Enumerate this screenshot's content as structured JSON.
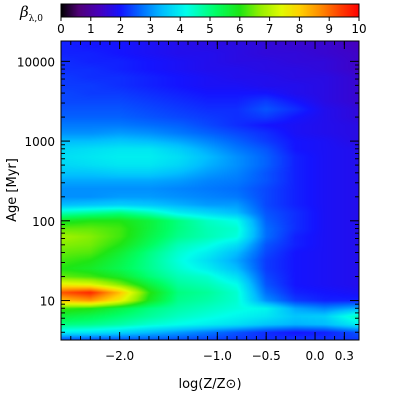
{
  "chart_data": {
    "type": "heatmap",
    "title": "",
    "xlabel": "log(Z/Z⊙)",
    "ylabel": "Age [Myr]",
    "xlim": [
      -2.6,
      0.45
    ],
    "ylim": [
      3.2,
      18000
    ],
    "y_scale": "log",
    "x_ticks": [
      -2.0,
      -1.0,
      -0.5,
      0.0,
      0.3
    ],
    "x_tick_labels": [
      "−2.0",
      "−1.0",
      "−0.5",
      "0.0",
      "0.3"
    ],
    "y_ticks": [
      10,
      100,
      1000,
      10000
    ],
    "y_tick_labels": [
      "10",
      "100",
      "1000",
      "10000"
    ],
    "colorbar": {
      "label": "β",
      "label_subscript": "λ,0",
      "range": [
        0,
        10
      ],
      "ticks": [
        0,
        1,
        2,
        3,
        4,
        5,
        6,
        7,
        8,
        9,
        10
      ],
      "tick_labels": [
        "0",
        "1",
        "2",
        "3",
        "4",
        "5",
        "6",
        "7",
        "8",
        "9",
        "10"
      ],
      "colormap": "rainbow (black-purple-blue-cyan-green-yellow-red)"
    },
    "log_age_rows": [
      0.52,
      0.6,
      0.7,
      0.8,
      0.9,
      1.0,
      1.1,
      1.2,
      1.3,
      1.4,
      1.5,
      1.6,
      1.7,
      1.8,
      1.9,
      2.0,
      2.1,
      2.2,
      2.3,
      2.4,
      2.5,
      2.6,
      2.7,
      2.8,
      2.9,
      3.0,
      3.1,
      3.2,
      3.3,
      3.4,
      3.5,
      3.6,
      3.7,
      3.8,
      3.9,
      4.0,
      4.1,
      4.2,
      4.25
    ],
    "log_z_cols": [
      -2.6,
      -2.3,
      -2.0,
      -1.7,
      -1.4,
      -1.1,
      -0.8,
      -0.5,
      -0.2,
      0.1,
      0.45
    ],
    "values": [
      [
        2.6,
        2.6,
        2.6,
        2.6,
        2.5,
        2.4,
        2.3,
        2.2,
        2.2,
        2.2,
        2.3
      ],
      [
        4.0,
        3.9,
        3.7,
        3.4,
        3.1,
        2.8,
        2.5,
        2.2,
        2.0,
        2.1,
        2.5
      ],
      [
        5.0,
        4.9,
        4.7,
        4.4,
        4.2,
        4.0,
        3.8,
        3.5,
        3.3,
        3.4,
        4.0
      ],
      [
        5.6,
        5.4,
        5.1,
        4.8,
        4.5,
        4.3,
        4.1,
        3.9,
        3.5,
        3.6,
        4.6
      ],
      [
        6.2,
        6.0,
        5.5,
        5.0,
        4.7,
        4.5,
        4.3,
        4.1,
        3.2,
        2.9,
        3.3
      ],
      [
        8.2,
        8.6,
        7.6,
        5.9,
        4.9,
        4.7,
        4.4,
        3.0,
        2.3,
        2.1,
        2.1
      ],
      [
        9.2,
        9.6,
        8.2,
        6.1,
        5.0,
        4.8,
        4.4,
        2.7,
        2.1,
        2.0,
        1.9
      ],
      [
        7.6,
        7.4,
        6.6,
        5.6,
        4.8,
        4.6,
        4.2,
        2.5,
        2.0,
        1.9,
        1.8
      ],
      [
        6.4,
        6.2,
        5.8,
        5.1,
        4.6,
        4.4,
        3.8,
        2.4,
        2.0,
        1.9,
        1.8
      ],
      [
        6.0,
        5.8,
        5.4,
        4.9,
        4.4,
        4.0,
        3.4,
        2.3,
        2.0,
        1.9,
        1.8
      ],
      [
        6.2,
        6.0,
        5.5,
        4.9,
        4.3,
        3.8,
        3.2,
        2.3,
        2.0,
        1.9,
        1.8
      ],
      [
        6.4,
        6.3,
        5.7,
        5.0,
        4.4,
        4.0,
        3.4,
        2.4,
        2.0,
        1.9,
        1.8
      ],
      [
        6.6,
        6.5,
        6.0,
        5.3,
        4.6,
        4.3,
        3.8,
        2.5,
        2.1,
        1.9,
        1.8
      ],
      [
        6.8,
        6.6,
        6.2,
        5.5,
        4.9,
        4.6,
        4.3,
        2.7,
        2.1,
        1.9,
        1.8
      ],
      [
        6.4,
        6.4,
        6.2,
        5.6,
        5.0,
        4.6,
        4.4,
        2.7,
        2.2,
        1.9,
        1.8
      ],
      [
        5.8,
        6.0,
        6.0,
        5.6,
        5.0,
        4.5,
        4.2,
        2.6,
        2.2,
        1.9,
        1.8
      ],
      [
        4.6,
        4.8,
        5.0,
        4.6,
        4.0,
        3.7,
        3.4,
        2.5,
        2.2,
        1.9,
        1.8
      ],
      [
        3.4,
        3.5,
        3.6,
        3.5,
        3.3,
        3.1,
        3.1,
        2.4,
        2.1,
        1.9,
        1.8
      ],
      [
        3.0,
        3.0,
        3.1,
        3.1,
        3.0,
        2.9,
        2.8,
        2.4,
        2.1,
        1.9,
        1.8
      ],
      [
        3.0,
        3.0,
        3.0,
        3.0,
        2.9,
        2.8,
        2.7,
        2.4,
        2.1,
        1.9,
        1.8
      ],
      [
        3.2,
        3.2,
        3.2,
        3.2,
        3.1,
        2.9,
        2.8,
        2.5,
        2.1,
        1.9,
        1.8
      ],
      [
        3.5,
        3.5,
        3.6,
        3.6,
        3.4,
        3.1,
        2.9,
        2.5,
        2.1,
        1.9,
        1.8
      ],
      [
        3.7,
        3.8,
        3.9,
        3.9,
        3.7,
        3.3,
        3.0,
        2.6,
        2.1,
        1.9,
        1.8
      ],
      [
        3.8,
        3.9,
        4.0,
        4.0,
        3.8,
        3.4,
        3.0,
        2.6,
        2.1,
        1.9,
        1.8
      ],
      [
        3.7,
        3.8,
        3.9,
        3.9,
        3.6,
        3.2,
        2.8,
        2.5,
        2.0,
        1.9,
        1.8
      ],
      [
        3.4,
        3.4,
        3.5,
        3.4,
        3.2,
        2.9,
        2.6,
        2.3,
        2.0,
        1.9,
        1.7
      ],
      [
        3.0,
        3.0,
        3.1,
        3.0,
        2.8,
        2.6,
        2.4,
        2.2,
        1.9,
        1.8,
        1.7
      ],
      [
        2.8,
        2.8,
        2.8,
        2.7,
        2.6,
        2.4,
        2.2,
        2.0,
        1.9,
        1.8,
        1.7
      ],
      [
        2.6,
        2.6,
        2.6,
        2.5,
        2.4,
        2.3,
        2.2,
        2.3,
        2.0,
        1.8,
        1.6
      ],
      [
        2.5,
        2.5,
        2.5,
        2.4,
        2.3,
        2.2,
        2.2,
        2.5,
        2.2,
        1.8,
        1.6
      ],
      [
        2.4,
        2.4,
        2.4,
        2.3,
        2.2,
        2.1,
        2.1,
        2.3,
        2.0,
        1.7,
        1.5
      ],
      [
        2.4,
        2.3,
        2.3,
        2.2,
        2.1,
        2.0,
        2.0,
        2.0,
        1.8,
        1.7,
        1.5
      ],
      [
        2.3,
        2.3,
        2.2,
        2.1,
        2.0,
        1.9,
        1.9,
        1.8,
        1.8,
        1.7,
        1.5
      ],
      [
        2.3,
        2.2,
        2.2,
        2.1,
        2.0,
        1.9,
        1.8,
        1.8,
        1.7,
        1.7,
        1.5
      ],
      [
        2.2,
        2.2,
        2.1,
        2.0,
        1.9,
        1.8,
        1.8,
        1.7,
        1.7,
        1.6,
        1.4
      ],
      [
        2.2,
        2.1,
        2.1,
        2.0,
        1.9,
        1.8,
        1.7,
        1.7,
        1.6,
        1.6,
        1.4
      ],
      [
        2.1,
        2.1,
        2.0,
        1.9,
        1.8,
        1.8,
        1.7,
        1.6,
        1.6,
        1.5,
        1.4
      ],
      [
        2.1,
        2.0,
        2.0,
        1.9,
        1.8,
        1.7,
        1.7,
        1.6,
        1.5,
        1.5,
        1.3
      ],
      [
        2.1,
        2.0,
        2.0,
        1.9,
        1.8,
        1.7,
        1.7,
        1.6,
        1.5,
        1.5,
        1.3
      ]
    ],
    "grid": false,
    "legend": "colorbar-top"
  }
}
